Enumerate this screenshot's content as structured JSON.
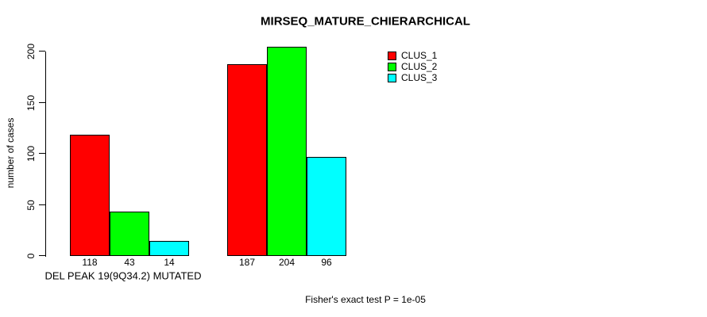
{
  "chart_data": {
    "type": "bar",
    "title": "MIRSEQ_MATURE_CHIERARCHICAL",
    "ylabel": "number of cases",
    "xlabel": "DEL PEAK 19(9Q34.2) MUTATED",
    "annotation": "Fisher's exact test P = 1e-05",
    "ylim": [
      0,
      200
    ],
    "yticks": [
      0,
      50,
      100,
      150,
      200
    ],
    "categories": [
      "DEL PEAK 19(9Q34.2) MUTATED",
      ""
    ],
    "series": [
      {
        "name": "CLUS_1",
        "color": "#ff0000",
        "values": [
          118,
          187
        ]
      },
      {
        "name": "CLUS_2",
        "color": "#00ff00",
        "values": [
          43,
          204
        ]
      },
      {
        "name": "CLUS_3",
        "color": "#00ffff",
        "values": [
          14,
          96
        ]
      }
    ],
    "bar_value_labels": [
      [
        118,
        43,
        14
      ],
      [
        187,
        204,
        96
      ]
    ],
    "legend_position": "top-right",
    "grid": false,
    "background_color": "#ffffff",
    "text_color": "#000000"
  }
}
